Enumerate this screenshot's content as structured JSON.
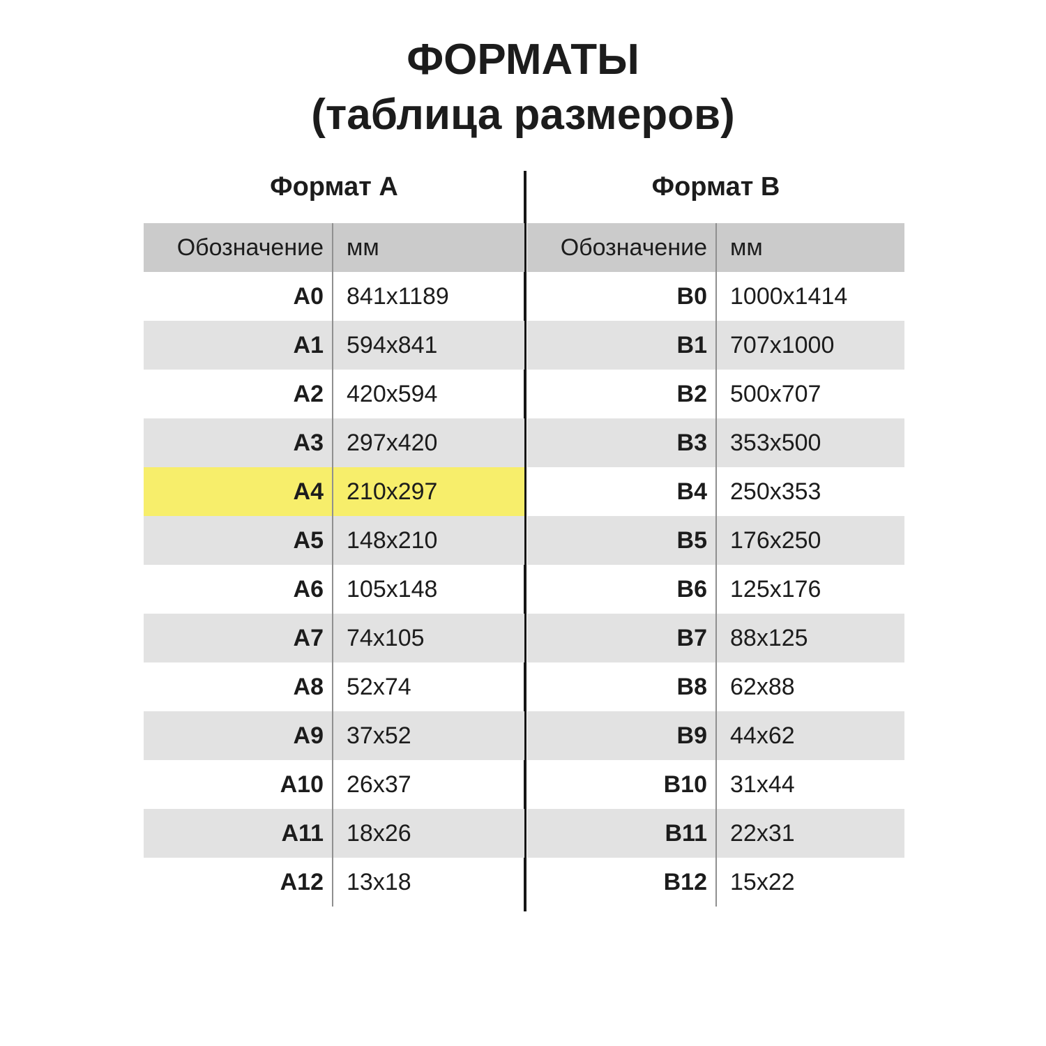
{
  "page": {
    "title": "ФОРМАТЫ",
    "subtitle": "(таблица размеров)"
  },
  "colors": {
    "background": "#ffffff",
    "text": "#1c1c1c",
    "header_bg": "#cbcbcb",
    "row_alt_bg": "#e2e2e2",
    "highlight_bg": "#f7ee6b",
    "column_divider": "#8f8f8f",
    "center_line": "#161616"
  },
  "tables": [
    {
      "heading": "Формат A",
      "columns": {
        "designation": "Обозначение",
        "mm": "мм"
      },
      "highlighted_row": "A4",
      "rows": [
        {
          "designation": "A0",
          "mm": "841x1189"
        },
        {
          "designation": "A1",
          "mm": "594x841"
        },
        {
          "designation": "A2",
          "mm": "420x594"
        },
        {
          "designation": "A3",
          "mm": "297x420"
        },
        {
          "designation": "A4",
          "mm": "210x297",
          "highlight": true
        },
        {
          "designation": "A5",
          "mm": "148x210"
        },
        {
          "designation": "A6",
          "mm": "105x148"
        },
        {
          "designation": "A7",
          "mm": "74x105"
        },
        {
          "designation": "A8",
          "mm": "52x74"
        },
        {
          "designation": "A9",
          "mm": "37x52"
        },
        {
          "designation": "A10",
          "mm": "26x37"
        },
        {
          "designation": "A11",
          "mm": "18x26"
        },
        {
          "designation": "A12",
          "mm": "13x18"
        }
      ]
    },
    {
      "heading": "Формат B",
      "columns": {
        "designation": "Обозначение",
        "mm": "мм"
      },
      "highlighted_row": null,
      "rows": [
        {
          "designation": "B0",
          "mm": "1000x1414"
        },
        {
          "designation": "B1",
          "mm": "707x1000"
        },
        {
          "designation": "B2",
          "mm": "500x707"
        },
        {
          "designation": "B3",
          "mm": "353x500"
        },
        {
          "designation": "B4",
          "mm": "250x353"
        },
        {
          "designation": "B5",
          "mm": "176x250"
        },
        {
          "designation": "B6",
          "mm": "125x176"
        },
        {
          "designation": "B7",
          "mm": "88x125"
        },
        {
          "designation": "B8",
          "mm": "62x88"
        },
        {
          "designation": "B9",
          "mm": "44x62"
        },
        {
          "designation": "B10",
          "mm": "31x44"
        },
        {
          "designation": "B11",
          "mm": "22x31"
        },
        {
          "designation": "B12",
          "mm": "15x22"
        }
      ]
    }
  ],
  "chart_data": [
    {
      "type": "table",
      "title": "Формат A",
      "columns": [
        "Обозначение",
        "мм"
      ],
      "rows": [
        [
          "A0",
          "841x1189"
        ],
        [
          "A1",
          "594x841"
        ],
        [
          "A2",
          "420x594"
        ],
        [
          "A3",
          "297x420"
        ],
        [
          "A4",
          "210x297"
        ],
        [
          "A5",
          "148x210"
        ],
        [
          "A6",
          "105x148"
        ],
        [
          "A7",
          "74x105"
        ],
        [
          "A8",
          "52x74"
        ],
        [
          "A9",
          "37x52"
        ],
        [
          "A10",
          "26x37"
        ],
        [
          "A11",
          "18x26"
        ],
        [
          "A12",
          "13x18"
        ]
      ],
      "highlighted_row": "A4"
    },
    {
      "type": "table",
      "title": "Формат B",
      "columns": [
        "Обозначение",
        "мм"
      ],
      "rows": [
        [
          "B0",
          "1000x1414"
        ],
        [
          "B1",
          "707x1000"
        ],
        [
          "B2",
          "500x707"
        ],
        [
          "B3",
          "353x500"
        ],
        [
          "B4",
          "250x353"
        ],
        [
          "B5",
          "176x250"
        ],
        [
          "B6",
          "125x176"
        ],
        [
          "B7",
          "88x125"
        ],
        [
          "B8",
          "62x88"
        ],
        [
          "B9",
          "44x62"
        ],
        [
          "B10",
          "31x44"
        ],
        [
          "B11",
          "22x31"
        ],
        [
          "B12",
          "15x22"
        ]
      ],
      "highlighted_row": null
    }
  ]
}
